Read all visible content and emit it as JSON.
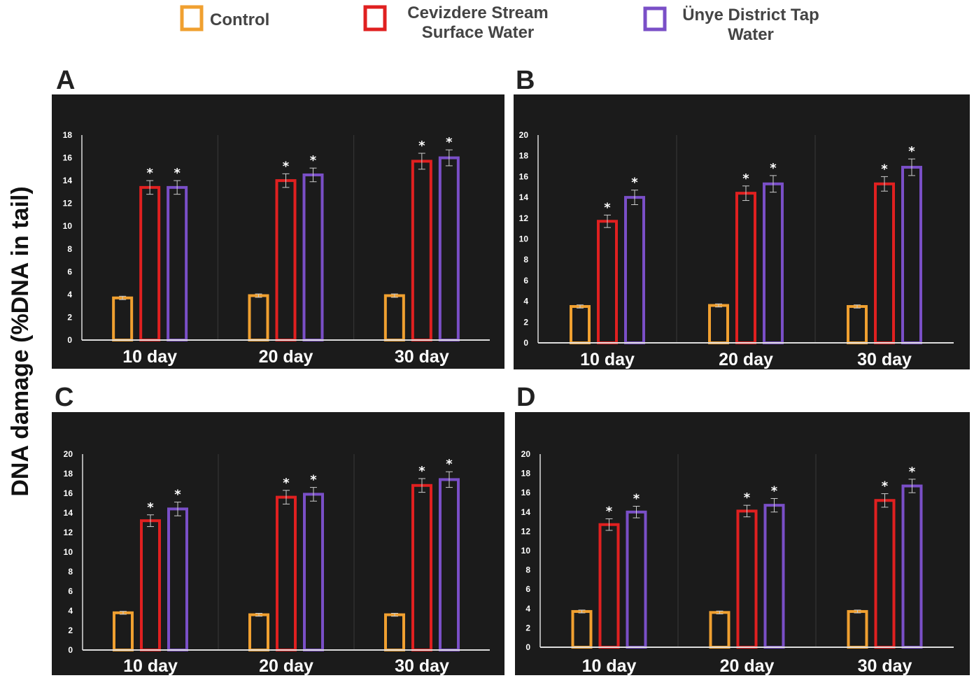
{
  "legend": [
    {
      "lines": [
        "Control"
      ],
      "color": "#f0a030"
    },
    {
      "lines": [
        "Cevizdere Stream",
        "Surface Water"
      ],
      "color": "#e02020"
    },
    {
      "lines": [
        "Ünye District Tap",
        "Water"
      ],
      "color": "#7a4fc7"
    }
  ],
  "ylabel": "DNA damage (%DNA in tail)",
  "colors": {
    "panel_bg": "#1b1b1b",
    "axis": "#dddddd",
    "divider": "#3a3a3a",
    "errorbar": "#cccccc"
  },
  "chart_data": [
    {
      "panel": "A",
      "type": "bar",
      "categories": [
        "10 day",
        "20 day",
        "30 day"
      ],
      "ylim": [
        0,
        18
      ],
      "yticks": [
        "0",
        "2",
        "4",
        "6",
        "8",
        "10",
        "12",
        "14",
        "16",
        "18"
      ],
      "series": [
        {
          "name": "Control",
          "values": [
            3.7,
            3.9,
            3.9
          ],
          "errors": [
            0.15,
            0.15,
            0.15
          ],
          "stars": [
            false,
            false,
            false
          ]
        },
        {
          "name": "Cevizdere Stream Surface Water",
          "values": [
            13.4,
            14.0,
            15.7
          ],
          "errors": [
            0.6,
            0.6,
            0.7
          ],
          "stars": [
            true,
            true,
            true
          ]
        },
        {
          "name": "Ünye District Tap Water",
          "values": [
            13.4,
            14.5,
            16.0
          ],
          "errors": [
            0.6,
            0.6,
            0.7
          ],
          "stars": [
            true,
            true,
            true
          ]
        }
      ]
    },
    {
      "panel": "B",
      "type": "bar",
      "categories": [
        "10 day",
        "20 day",
        "30 day"
      ],
      "ylim": [
        0,
        20
      ],
      "yticks": [
        "0",
        "2",
        "4",
        "6",
        "8",
        "10",
        "12",
        "14",
        "16",
        "18",
        "20"
      ],
      "series": [
        {
          "name": "Control",
          "values": [
            3.5,
            3.6,
            3.5
          ],
          "errors": [
            0.15,
            0.15,
            0.15
          ],
          "stars": [
            false,
            false,
            false
          ]
        },
        {
          "name": "Cevizdere Stream Surface Water",
          "values": [
            11.7,
            14.4,
            15.3
          ],
          "errors": [
            0.6,
            0.7,
            0.7
          ],
          "stars": [
            true,
            true,
            true
          ]
        },
        {
          "name": "Ünye District Tap Water",
          "values": [
            14.0,
            15.3,
            16.9
          ],
          "errors": [
            0.7,
            0.8,
            0.8
          ],
          "stars": [
            true,
            true,
            true
          ]
        }
      ]
    },
    {
      "panel": "C",
      "type": "bar",
      "categories": [
        "10 day",
        "20 day",
        "30 day"
      ],
      "ylim": [
        0,
        20
      ],
      "yticks": [
        "0",
        "2",
        "4",
        "6",
        "8",
        "10",
        "12",
        "14",
        "16",
        "18",
        "20"
      ],
      "series": [
        {
          "name": "Control",
          "values": [
            3.8,
            3.6,
            3.6
          ],
          "errors": [
            0.15,
            0.15,
            0.15
          ],
          "stars": [
            false,
            false,
            false
          ]
        },
        {
          "name": "Cevizdere Stream Surface Water",
          "values": [
            13.2,
            15.6,
            16.8
          ],
          "errors": [
            0.6,
            0.7,
            0.7
          ],
          "stars": [
            true,
            true,
            true
          ]
        },
        {
          "name": "Ünye District Tap Water",
          "values": [
            14.4,
            15.9,
            17.4
          ],
          "errors": [
            0.7,
            0.7,
            0.8
          ],
          "stars": [
            true,
            true,
            true
          ]
        }
      ]
    },
    {
      "panel": "D",
      "type": "bar",
      "categories": [
        "10 day",
        "20 day",
        "30 day"
      ],
      "ylim": [
        0,
        20
      ],
      "yticks": [
        "0",
        "2",
        "4",
        "6",
        "8",
        "10",
        "12",
        "14",
        "16",
        "18",
        "20"
      ],
      "series": [
        {
          "name": "Control",
          "values": [
            3.7,
            3.6,
            3.7
          ],
          "errors": [
            0.15,
            0.15,
            0.15
          ],
          "stars": [
            false,
            false,
            false
          ]
        },
        {
          "name": "Cevizdere Stream Surface Water",
          "values": [
            12.7,
            14.1,
            15.2
          ],
          "errors": [
            0.6,
            0.6,
            0.7
          ],
          "stars": [
            true,
            true,
            true
          ]
        },
        {
          "name": "Ünye District Tap Water",
          "values": [
            14.0,
            14.7,
            16.7
          ],
          "errors": [
            0.6,
            0.7,
            0.7
          ],
          "stars": [
            true,
            true,
            true
          ]
        }
      ]
    }
  ]
}
